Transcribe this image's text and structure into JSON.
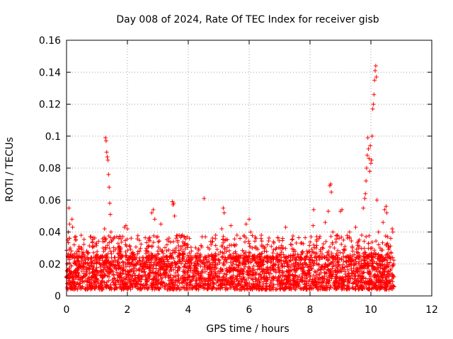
{
  "chart_data": {
    "type": "scatter",
    "title": "Day 008 of 2024, Rate Of TEC Index for receiver gisb",
    "xlabel": "GPS time / hours",
    "ylabel": "ROTI / TECUs",
    "xlim": [
      0,
      12
    ],
    "ylim": [
      0,
      0.16
    ],
    "xticks": [
      0,
      2,
      4,
      6,
      8,
      10,
      12
    ],
    "yticks": [
      0,
      0.02,
      0.04,
      0.06,
      0.08,
      0.1,
      0.12,
      0.14,
      0.16
    ],
    "xtick_labels": [
      "0",
      "2",
      "4",
      "6",
      "8",
      "10",
      "12"
    ],
    "ytick_labels": [
      "0",
      "0.02",
      "0.04",
      "0.06",
      "0.08",
      "0.1",
      "0.12",
      "0.14",
      "0.16"
    ],
    "grid": true,
    "marker": "+",
    "series": [
      {
        "name": "ROTI",
        "color": "#ff0000",
        "points": [
          [
            0.0,
            0.012
          ],
          [
            0.02,
            0.02
          ],
          [
            0.04,
            0.035
          ],
          [
            0.06,
            0.04
          ],
          [
            0.08,
            0.055
          ],
          [
            0.1,
            0.045
          ],
          [
            0.12,
            0.03
          ],
          [
            0.15,
            0.025
          ],
          [
            0.18,
            0.048
          ],
          [
            0.2,
            0.043
          ],
          [
            0.25,
            0.032
          ],
          [
            0.3,
            0.016
          ],
          [
            0.35,
            0.028
          ],
          [
            0.4,
            0.022
          ],
          [
            0.45,
            0.018
          ],
          [
            0.5,
            0.03
          ],
          [
            0.55,
            0.012
          ],
          [
            0.6,
            0.025
          ],
          [
            0.7,
            0.02
          ],
          [
            0.8,
            0.037
          ],
          [
            0.85,
            0.034
          ],
          [
            0.9,
            0.015
          ],
          [
            1.0,
            0.026
          ],
          [
            1.1,
            0.02
          ],
          [
            1.2,
            0.03
          ],
          [
            1.25,
            0.042
          ],
          [
            1.28,
            0.099
          ],
          [
            1.3,
            0.097
          ],
          [
            1.32,
            0.09
          ],
          [
            1.34,
            0.087
          ],
          [
            1.36,
            0.085
          ],
          [
            1.38,
            0.076
          ],
          [
            1.4,
            0.068
          ],
          [
            1.42,
            0.058
          ],
          [
            1.44,
            0.051
          ],
          [
            1.46,
            0.04
          ],
          [
            1.5,
            0.035
          ],
          [
            1.55,
            0.028
          ],
          [
            1.6,
            0.022
          ],
          [
            1.65,
            0.037
          ],
          [
            1.7,
            0.03
          ],
          [
            1.75,
            0.018
          ],
          [
            1.8,
            0.025
          ],
          [
            1.9,
            0.043
          ],
          [
            1.95,
            0.044
          ],
          [
            2.0,
            0.042
          ],
          [
            2.1,
            0.02
          ],
          [
            2.2,
            0.026
          ],
          [
            2.3,
            0.016
          ],
          [
            2.4,
            0.028
          ],
          [
            2.5,
            0.022
          ],
          [
            2.6,
            0.018
          ],
          [
            2.7,
            0.035
          ],
          [
            2.8,
            0.052
          ],
          [
            2.85,
            0.054
          ],
          [
            2.9,
            0.048
          ],
          [
            3.0,
            0.028
          ],
          [
            3.1,
            0.045
          ],
          [
            3.2,
            0.02
          ],
          [
            3.3,
            0.032
          ],
          [
            3.4,
            0.018
          ],
          [
            3.48,
            0.059
          ],
          [
            3.5,
            0.057
          ],
          [
            3.52,
            0.058
          ],
          [
            3.55,
            0.05
          ],
          [
            3.6,
            0.03
          ],
          [
            3.7,
            0.022
          ],
          [
            3.8,
            0.038
          ],
          [
            3.9,
            0.02
          ],
          [
            4.0,
            0.016
          ],
          [
            4.1,
            0.024
          ],
          [
            4.2,
            0.018
          ],
          [
            4.3,
            0.02
          ],
          [
            4.4,
            0.026
          ],
          [
            4.5,
            0.022
          ],
          [
            4.52,
            0.061
          ],
          [
            4.6,
            0.024
          ],
          [
            4.7,
            0.018
          ],
          [
            4.8,
            0.034
          ],
          [
            4.9,
            0.038
          ],
          [
            5.0,
            0.026
          ],
          [
            5.1,
            0.042
          ],
          [
            5.15,
            0.055
          ],
          [
            5.18,
            0.052
          ],
          [
            5.2,
            0.03
          ],
          [
            5.3,
            0.024
          ],
          [
            5.4,
            0.044
          ],
          [
            5.5,
            0.032
          ],
          [
            5.6,
            0.038
          ],
          [
            5.7,
            0.036
          ],
          [
            5.8,
            0.024
          ],
          [
            5.9,
            0.045
          ],
          [
            6.0,
            0.048
          ],
          [
            6.05,
            0.04
          ],
          [
            6.1,
            0.03
          ],
          [
            6.2,
            0.022
          ],
          [
            6.3,
            0.02
          ],
          [
            6.4,
            0.038
          ],
          [
            6.5,
            0.028
          ],
          [
            6.6,
            0.018
          ],
          [
            6.7,
            0.024
          ],
          [
            6.8,
            0.02
          ],
          [
            6.9,
            0.03
          ],
          [
            7.0,
            0.022
          ],
          [
            7.1,
            0.036
          ],
          [
            7.2,
            0.043
          ],
          [
            7.3,
            0.025
          ],
          [
            7.4,
            0.032
          ],
          [
            7.5,
            0.02
          ],
          [
            7.6,
            0.026
          ],
          [
            7.7,
            0.033
          ],
          [
            7.8,
            0.018
          ],
          [
            7.9,
            0.028
          ],
          [
            8.0,
            0.022
          ],
          [
            8.1,
            0.044
          ],
          [
            8.12,
            0.054
          ],
          [
            8.2,
            0.03
          ],
          [
            8.3,
            0.036
          ],
          [
            8.4,
            0.024
          ],
          [
            8.5,
            0.046
          ],
          [
            8.6,
            0.053
          ],
          [
            8.65,
            0.069
          ],
          [
            8.68,
            0.07
          ],
          [
            8.7,
            0.065
          ],
          [
            8.75,
            0.04
          ],
          [
            8.8,
            0.03
          ],
          [
            8.9,
            0.038
          ],
          [
            9.0,
            0.053
          ],
          [
            9.05,
            0.054
          ],
          [
            9.1,
            0.035
          ],
          [
            9.2,
            0.024
          ],
          [
            9.3,
            0.04
          ],
          [
            9.4,
            0.028
          ],
          [
            9.5,
            0.043
          ],
          [
            9.6,
            0.03
          ],
          [
            9.7,
            0.038
          ],
          [
            9.75,
            0.055
          ],
          [
            9.8,
            0.061
          ],
          [
            9.82,
            0.064
          ],
          [
            9.84,
            0.072
          ],
          [
            9.86,
            0.08
          ],
          [
            9.88,
            0.088
          ],
          [
            9.9,
            0.099
          ],
          [
            9.92,
            0.092
          ],
          [
            9.94,
            0.086
          ],
          [
            9.96,
            0.078
          ],
          [
            9.98,
            0.094
          ],
          [
            10.0,
            0.083
          ],
          [
            10.02,
            0.085
          ],
          [
            10.04,
            0.1
          ],
          [
            10.06,
            0.117
          ],
          [
            10.08,
            0.12
          ],
          [
            10.1,
            0.126
          ],
          [
            10.12,
            0.135
          ],
          [
            10.14,
            0.141
          ],
          [
            10.16,
            0.144
          ],
          [
            10.18,
            0.137
          ],
          [
            10.2,
            0.06
          ],
          [
            10.25,
            0.04
          ],
          [
            10.3,
            0.03
          ],
          [
            10.35,
            0.025
          ],
          [
            10.4,
            0.046
          ],
          [
            10.45,
            0.054
          ],
          [
            10.5,
            0.056
          ],
          [
            10.52,
            0.052
          ],
          [
            10.55,
            0.037
          ],
          [
            10.6,
            0.03
          ],
          [
            10.65,
            0.036
          ],
          [
            10.7,
            0.042
          ],
          [
            10.72,
            0.04
          ],
          [
            10.75,
            0.02
          ],
          [
            10.76,
            0.012
          ]
        ],
        "baseline_band": {
          "x_range": [
            0.0,
            10.76
          ],
          "y_range": [
            0.004,
            0.024
          ],
          "density": "dense"
        }
      }
    ]
  }
}
